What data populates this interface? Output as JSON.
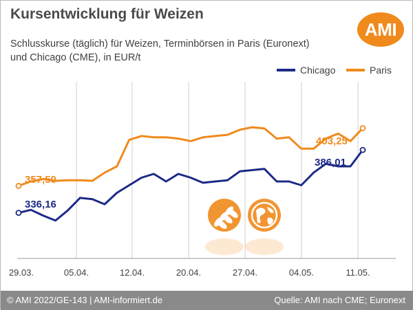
{
  "header": {
    "title": "Kursentwicklung für Weizen",
    "subtitle_line1": "Schlusskurse (täglich) für Weizen, Terminbörsen in Paris (Euronext)",
    "subtitle_line2": "und Chicago (CME), in EUR/t",
    "logo_text": "AMI"
  },
  "footer": {
    "left": "© AMI 2022/GE-143 | AMI-informiert.de",
    "right": "Quelle: AMI nach CME; Euronext"
  },
  "colors": {
    "chicago": "#1c2a87",
    "paris": "#f08a1c",
    "grid": "#cfcfcf",
    "footer": "#8a8a8a"
  },
  "chart_data": {
    "type": "line",
    "x_tick_labels": [
      "29.03.",
      "05.04.",
      "12.04.",
      "20.04.",
      "27.04.",
      "04.05.",
      "11.05."
    ],
    "legend_position": "top-right",
    "grid": "vertical",
    "ylim": [
      300,
      440
    ],
    "series": [
      {
        "name": "Chicago",
        "color": "#1c2a87",
        "start_label": "336,16",
        "end_label": "386,01",
        "values": [
          336.16,
          338.5,
          334,
          330,
          338,
          348,
          347,
          343,
          352,
          358,
          364,
          367,
          361,
          367,
          364,
          360,
          361,
          362,
          369,
          370,
          371,
          361,
          361,
          358,
          368,
          375,
          373,
          373,
          386.01
        ]
      },
      {
        "name": "Paris",
        "color": "#f08a1c",
        "start_label": "357,50",
        "end_label": "403,25",
        "values": [
          357.5,
          361,
          363,
          361.5,
          362,
          362,
          361.5,
          368,
          373,
          394,
          397,
          396,
          396,
          395,
          393,
          396,
          397,
          398,
          402,
          404,
          403,
          395,
          396,
          387,
          387,
          395,
          399,
          393,
          403.25
        ]
      }
    ]
  }
}
